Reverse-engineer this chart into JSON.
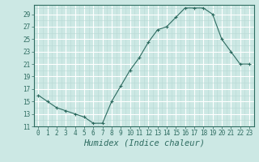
{
  "x": [
    0,
    1,
    2,
    3,
    4,
    5,
    6,
    7,
    8,
    9,
    10,
    11,
    12,
    13,
    14,
    15,
    16,
    17,
    18,
    19,
    20,
    21,
    22,
    23
  ],
  "y": [
    16,
    15,
    14,
    13.5,
    13,
    12.5,
    11.5,
    11.5,
    15,
    17.5,
    20,
    22,
    24.5,
    26.5,
    27,
    28.5,
    30,
    30,
    30,
    29,
    25,
    23,
    21,
    21
  ],
  "line_color": "#2d6b60",
  "marker": "+",
  "bg_color": "#cce8e4",
  "grid_major_color": "#ffffff",
  "grid_minor_color": "#b8d8d4",
  "xlabel": "Humidex (Indice chaleur)",
  "ylim": [
    11,
    30.5
  ],
  "xlim": [
    -0.5,
    23.5
  ],
  "yticks": [
    11,
    13,
    15,
    17,
    19,
    21,
    23,
    25,
    27,
    29
  ],
  "xticks": [
    0,
    1,
    2,
    3,
    4,
    5,
    6,
    7,
    8,
    9,
    10,
    11,
    12,
    13,
    14,
    15,
    16,
    17,
    18,
    19,
    20,
    21,
    22,
    23
  ],
  "tick_fontsize": 5.5,
  "xlabel_fontsize": 7.5
}
